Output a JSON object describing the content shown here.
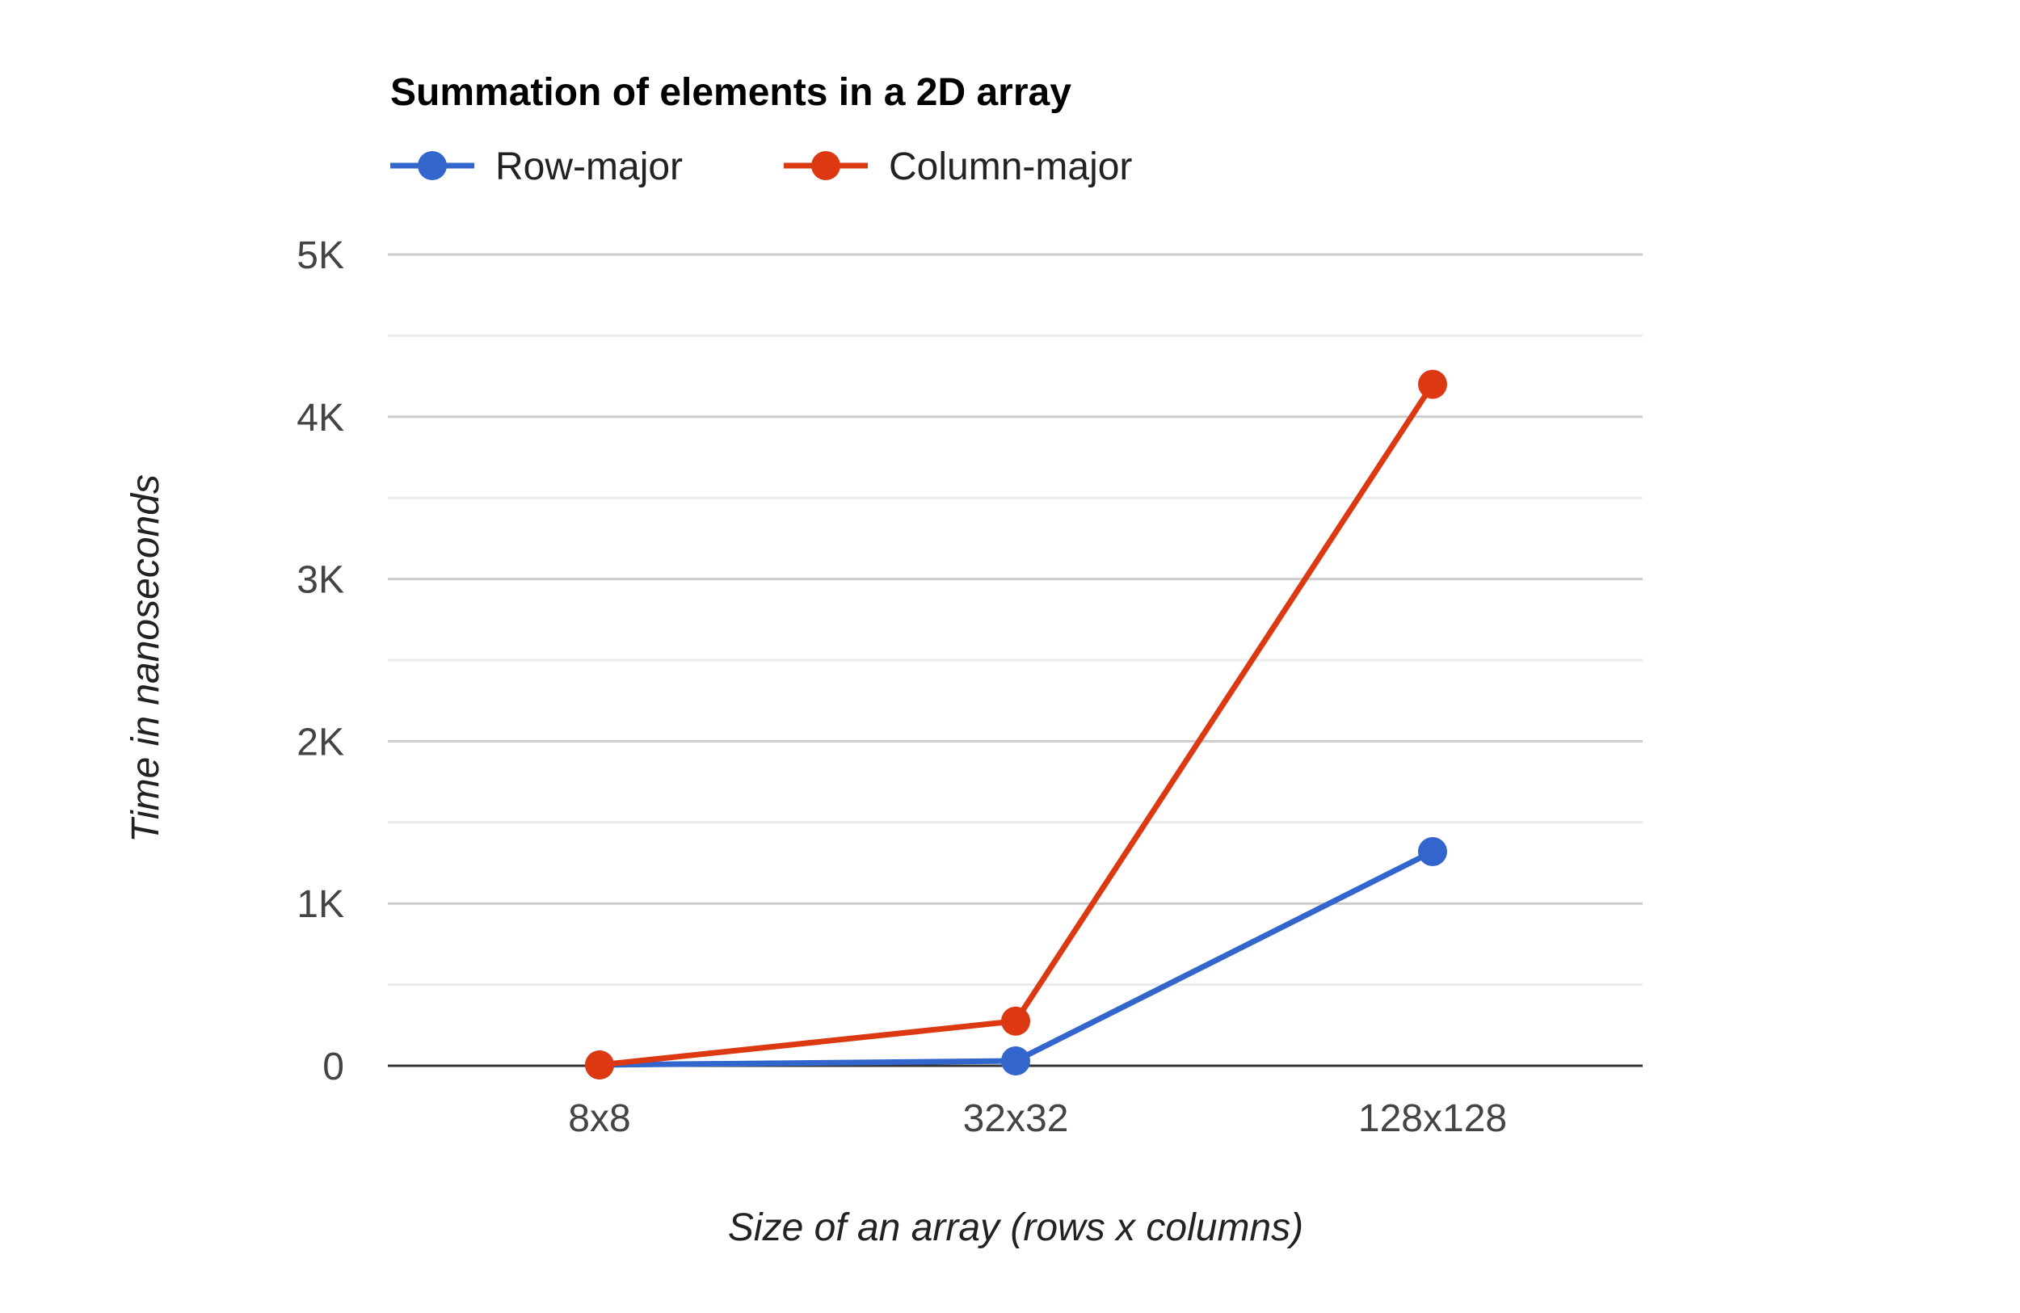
{
  "chart_data": {
    "type": "line",
    "title": "Summation of elements in a 2D array",
    "xlabel": "Size of an array (rows x columns)",
    "ylabel": "Time in nanoseconds",
    "categories": [
      "8x8",
      "32x32",
      "128x128"
    ],
    "series": [
      {
        "name": "Row-major",
        "color": "#3366cc",
        "values": [
          5,
          30,
          1320
        ]
      },
      {
        "name": "Column-major",
        "color": "#dc3912",
        "values": [
          5,
          275,
          4200
        ]
      }
    ],
    "ylim": [
      0,
      5000
    ],
    "yticks": [
      0,
      1000,
      2000,
      3000,
      4000,
      5000
    ],
    "ytick_labels": [
      "0",
      "1K",
      "2K",
      "3K",
      "4K",
      "5K"
    ],
    "grid": true,
    "minor_grid": true,
    "legend_position": "top-left"
  }
}
